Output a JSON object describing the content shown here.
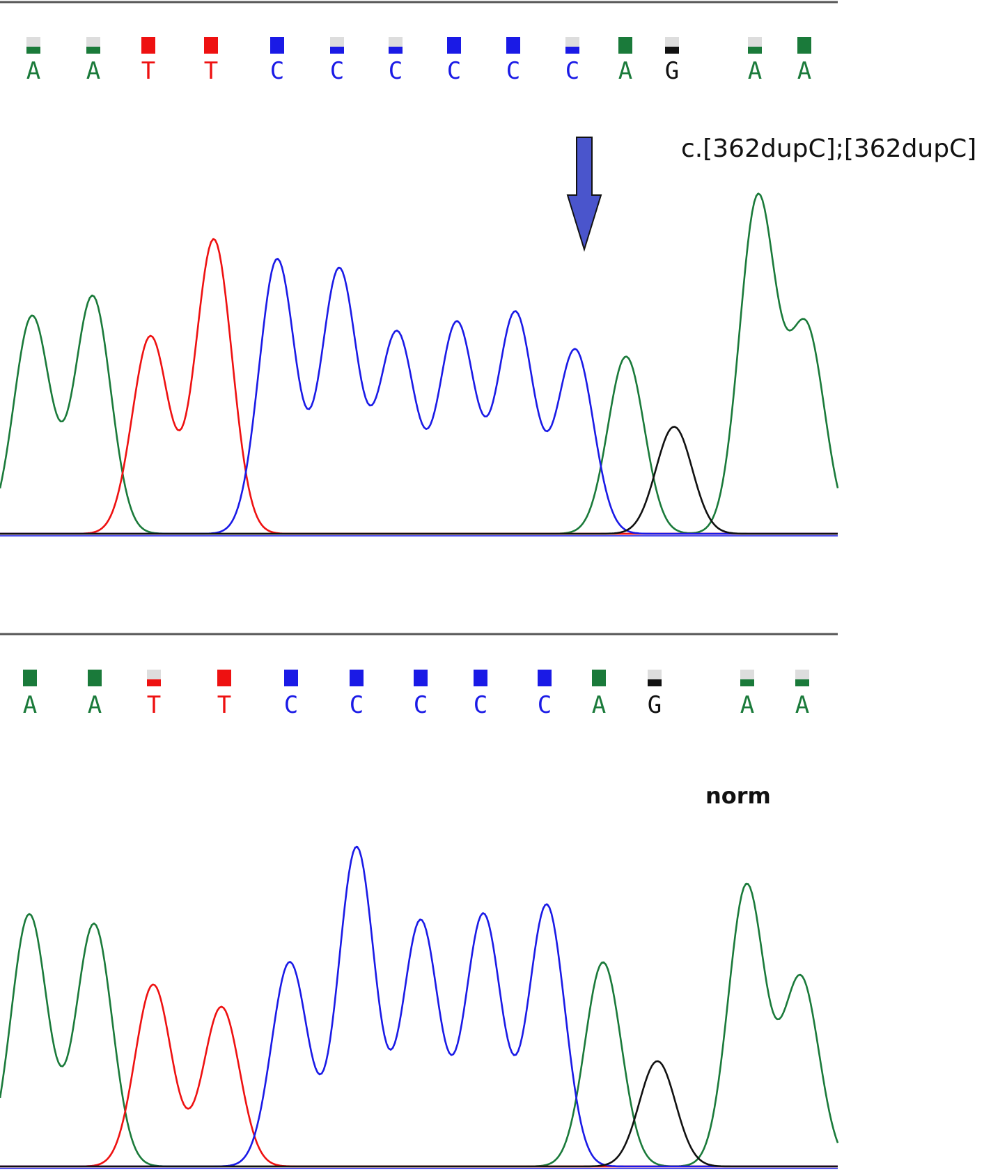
{
  "colors": {
    "A": "#1a7a3a",
    "C": "#1a1ae6",
    "G": "#111111",
    "T": "#ee1111",
    "arrow": "#4a55cc"
  },
  "chart_data": [
    {
      "type": "line",
      "title": "",
      "annotation": "c.[362dupC];[362dupC]",
      "arrow": true,
      "bases": [
        "A",
        "A",
        "T",
        "T",
        "C",
        "C",
        "C",
        "C",
        "C",
        "C",
        "A",
        "G",
        "A",
        "A"
      ],
      "series": [
        {
          "name": "A",
          "peaks": [
            [
              46,
              0.65
            ],
            [
              133,
              0.71
            ],
            [
              899,
              0.53
            ],
            [
              1088,
              1.0
            ],
            [
              1158,
              0.61
            ]
          ]
        },
        {
          "name": "T",
          "peaks": [
            [
              216,
              0.59
            ],
            [
              307,
              0.88
            ]
          ]
        },
        {
          "name": "C",
          "peaks": [
            [
              398,
              0.82
            ],
            [
              487,
              0.79
            ],
            [
              570,
              0.6
            ],
            [
              656,
              0.63
            ],
            [
              740,
              0.66
            ],
            [
              826,
              0.55
            ]
          ]
        },
        {
          "name": "G",
          "peaks": [
            [
              968,
              0.32
            ]
          ]
        }
      ]
    },
    {
      "type": "line",
      "title": "",
      "annotation": "norm",
      "arrow": false,
      "bases": [
        "A",
        "A",
        "T",
        "T",
        "C",
        "C",
        "C",
        "C",
        "C",
        "A",
        "G",
        "A",
        "A"
      ],
      "series": [
        {
          "name": "A",
          "peaks": [
            [
              42,
              0.79
            ],
            [
              135,
              0.76
            ],
            [
              866,
              0.64
            ],
            [
              1072,
              0.88
            ],
            [
              1150,
              0.59
            ]
          ]
        },
        {
          "name": "T",
          "peaks": [
            [
              220,
              0.57
            ],
            [
              318,
              0.5
            ]
          ]
        },
        {
          "name": "C",
          "peaks": [
            [
              416,
              0.64
            ],
            [
              512,
              1.0
            ],
            [
              604,
              0.77
            ],
            [
              694,
              0.79
            ],
            [
              785,
              0.82
            ]
          ]
        },
        {
          "name": "G",
          "peaks": [
            [
              944,
              0.33
            ]
          ]
        }
      ]
    }
  ]
}
